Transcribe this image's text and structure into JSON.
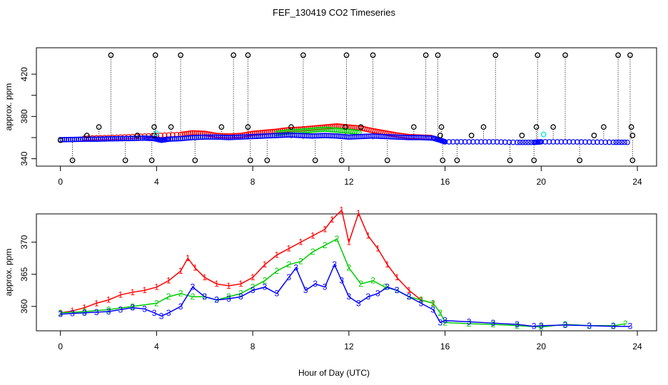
{
  "page_title": "FEF_130419  CO2 Timeseries",
  "xlabel": "Hour of Day (UTC)",
  "colors": {
    "red": "#ff0000",
    "green": "#00cc00",
    "blue": "#0000ff",
    "black": "#000000",
    "cyan": "#00e5e5"
  },
  "chart_data": [
    {
      "type": "scatter",
      "title": "FEF_130419  CO2 Timeseries",
      "ylabel": "approx. ppm",
      "xlim": [
        -1,
        24.8
      ],
      "ylim": [
        333,
        445
      ],
      "xticks": [
        0,
        4,
        8,
        12,
        16,
        20,
        24
      ],
      "xtick_labels": [
        "0",
        "4",
        "8",
        "12",
        "16",
        "20",
        "24"
      ],
      "yticks": [
        340,
        360,
        380,
        400,
        420
      ],
      "ytick_labels": [
        "340",
        "",
        "380",
        "",
        "420"
      ],
      "series": [
        {
          "name": "red",
          "color": "#ff0000",
          "x": [
            1.0,
            2.0,
            3.0,
            4.0,
            5.0,
            5.5,
            6.0,
            6.5,
            7.0,
            7.5,
            8.0,
            8.5,
            9.0,
            9.5,
            10.0,
            10.5,
            11.0,
            11.5,
            12.0,
            12.5,
            13.0,
            13.5,
            14.0,
            14.5,
            15.0,
            15.5
          ],
          "y": [
            359.5,
            360.0,
            361.0,
            362.0,
            363.0,
            364.5,
            364.0,
            362.0,
            361.5,
            362.0,
            364.0,
            365.0,
            366.0,
            367.5,
            368.0,
            369.0,
            370.0,
            371.0,
            370.0,
            369.0,
            366.5,
            364.5,
            362.5,
            361.0,
            360.5,
            360.0
          ]
        },
        {
          "name": "green",
          "color": "#00cc00",
          "x": [
            9.0,
            9.5,
            10.0,
            10.5,
            11.0,
            11.5,
            12.0,
            12.5
          ],
          "y": [
            364.0,
            365.5,
            366.0,
            367.0,
            368.0,
            367.0,
            366.0,
            364.5
          ]
        },
        {
          "name": "blue",
          "color": "#0000ff",
          "x": [
            0.0,
            0.5,
            1.0,
            1.5,
            2.0,
            2.5,
            3.0,
            3.5,
            3.9,
            4.2,
            4.5,
            5.0,
            5.5,
            6.0,
            6.5,
            7.0,
            7.5,
            8.0,
            8.5,
            9.0,
            9.5,
            10.0,
            10.5,
            11.0,
            11.5,
            12.0,
            12.5,
            13.0,
            13.5,
            14.0,
            14.5,
            15.0,
            15.5,
            15.8,
            16.0,
            17.0,
            18.0,
            19.0,
            19.7,
            20.0,
            21.0,
            22.0,
            23.0,
            23.7
          ],
          "y": [
            358.0,
            358.2,
            358.5,
            358.5,
            358.8,
            359.0,
            359.2,
            359.5,
            359.0,
            357.5,
            358.5,
            359.0,
            360.0,
            360.5,
            360.5,
            360.0,
            360.5,
            361.0,
            361.5,
            362.0,
            362.5,
            362.0,
            361.5,
            362.0,
            361.5,
            360.5,
            361.0,
            361.5,
            361.0,
            360.5,
            360.0,
            360.0,
            359.5,
            357.5,
            356.0,
            356.0,
            356.0,
            355.5,
            355.5,
            356.0,
            356.0,
            355.8,
            355.6,
            355.5
          ]
        },
        {
          "name": "black",
          "color": "#000000",
          "x": [
            0.0,
            0.5,
            1.1,
            1.6,
            2.1,
            2.7,
            3.2,
            3.8,
            3.9,
            3.9,
            3.95,
            4.6,
            5.0,
            5.6,
            6.7,
            7.2,
            7.8,
            7.8,
            7.9,
            8.6,
            9.6,
            10.1,
            10.6,
            11.7,
            11.85,
            11.9,
            12.5,
            13.0,
            13.6,
            14.7,
            15.2,
            15.7,
            15.8,
            15.85,
            15.9,
            16.5,
            17.1,
            17.6,
            18.1,
            18.7,
            19.2,
            19.7,
            19.8,
            19.85,
            20.5,
            21.0,
            21.6,
            22.2,
            22.6,
            23.2,
            23.7,
            23.75,
            23.8,
            23.8
          ],
          "y": [
            357.5,
            338.5,
            362.0,
            370.0,
            438.0,
            338.5,
            362.0,
            338.5,
            370.0,
            362.0,
            438.0,
            370.0,
            438.0,
            338.5,
            370.0,
            438.0,
            438.0,
            370.0,
            338.5,
            338.5,
            370.0,
            438.0,
            338.5,
            338.5,
            370.0,
            438.0,
            370.0,
            438.0,
            338.5,
            370.0,
            438.0,
            438.0,
            362.0,
            370.0,
            338.5,
            338.5,
            362.0,
            370.0,
            438.0,
            338.5,
            362.0,
            338.5,
            370.0,
            438.0,
            370.0,
            438.0,
            338.5,
            362.0,
            370.0,
            438.0,
            438.0,
            370.0,
            362.0,
            338.5
          ]
        },
        {
          "name": "cyan",
          "color": "#00e5e5",
          "x": [
            4.0,
            20.1
          ],
          "y": [
            364.0,
            363.0
          ]
        }
      ]
    },
    {
      "type": "line",
      "title": "",
      "ylabel": "approx. ppm",
      "xlim": [
        -1,
        24.8
      ],
      "ylim": [
        356.2,
        374.4
      ],
      "xticks": [
        0,
        4,
        8,
        12,
        16,
        20,
        24
      ],
      "xtick_labels": [
        "0",
        "4",
        "8",
        "12",
        "16",
        "20",
        "24"
      ],
      "yticks": [
        360,
        365,
        370
      ],
      "ytick_labels": [
        "360",
        "365",
        "370"
      ],
      "series": [
        {
          "name": "1",
          "color": "#ff0000",
          "marker": "1",
          "x": [
            0.0,
            0.5,
            1.0,
            1.5,
            2.0,
            2.5,
            3.0,
            3.5,
            4.0,
            4.5,
            5.0,
            5.3,
            5.6,
            6.0,
            6.5,
            7.0,
            7.5,
            8.0,
            8.5,
            9.0,
            9.5,
            10.0,
            10.5,
            11.0,
            11.3,
            11.7,
            12.0,
            12.4,
            12.8,
            13.2,
            13.6,
            14.0,
            14.5,
            15.0,
            15.5
          ],
          "y": [
            359.0,
            359.3,
            359.8,
            360.5,
            361.0,
            361.8,
            362.2,
            362.5,
            363.0,
            364.0,
            365.5,
            367.5,
            366.0,
            364.5,
            363.5,
            363.2,
            363.5,
            364.5,
            366.5,
            368.0,
            369.0,
            370.0,
            371.0,
            372.0,
            373.5,
            375.0,
            370.0,
            374.5,
            371.0,
            369.0,
            366.5,
            364.5,
            362.5,
            361.0,
            360.5
          ]
        },
        {
          "name": "2",
          "color": "#00cc00",
          "marker": "2",
          "x": [
            0.0,
            1.0,
            2.0,
            3.0,
            4.0,
            4.5,
            5.0,
            5.5,
            6.0,
            6.5,
            7.0,
            7.5,
            8.0,
            8.5,
            9.0,
            9.5,
            10.0,
            10.5,
            11.0,
            11.5,
            12.0,
            12.5,
            13.0,
            13.5,
            14.0,
            14.5,
            15.0,
            15.5,
            15.8,
            16.0,
            17.0,
            18.0,
            19.0,
            20.0,
            21.0,
            22.0,
            23.0,
            23.5
          ],
          "y": [
            359.0,
            359.2,
            359.5,
            360.0,
            360.5,
            361.5,
            362.0,
            361.5,
            361.5,
            361.0,
            361.5,
            362.0,
            363.0,
            364.0,
            365.5,
            366.5,
            367.0,
            368.5,
            369.5,
            370.5,
            366.0,
            363.5,
            364.0,
            363.0,
            362.5,
            361.5,
            361.0,
            360.5,
            359.0,
            357.5,
            357.3,
            357.2,
            357.0,
            356.8,
            357.2,
            357.0,
            357.0,
            357.3
          ]
        },
        {
          "name": "3",
          "color": "#0000ff",
          "marker": "3",
          "x": [
            0.0,
            0.5,
            1.0,
            1.5,
            2.0,
            2.5,
            3.0,
            3.5,
            3.9,
            4.2,
            4.5,
            5.0,
            5.5,
            6.0,
            6.5,
            7.0,
            7.5,
            8.0,
            8.5,
            9.0,
            9.5,
            9.8,
            10.2,
            10.6,
            11.0,
            11.4,
            11.7,
            12.0,
            12.4,
            12.8,
            13.2,
            13.6,
            14.0,
            14.5,
            15.0,
            15.5,
            15.8,
            16.0,
            17.0,
            18.0,
            19.0,
            19.7,
            20.0,
            21.0,
            22.0,
            23.0,
            23.7
          ],
          "y": [
            358.8,
            358.9,
            359.0,
            359.1,
            359.2,
            359.5,
            359.8,
            359.6,
            359.0,
            358.5,
            359.0,
            360.0,
            363.0,
            361.5,
            361.0,
            361.2,
            361.5,
            362.5,
            363.0,
            362.0,
            364.5,
            366.0,
            362.5,
            363.5,
            363.0,
            366.5,
            364.0,
            361.5,
            360.5,
            361.5,
            362.0,
            363.0,
            362.5,
            361.5,
            360.5,
            359.5,
            357.5,
            357.8,
            357.6,
            357.4,
            357.2,
            356.9,
            357.0,
            357.1,
            357.0,
            356.9,
            356.9
          ]
        }
      ]
    }
  ]
}
